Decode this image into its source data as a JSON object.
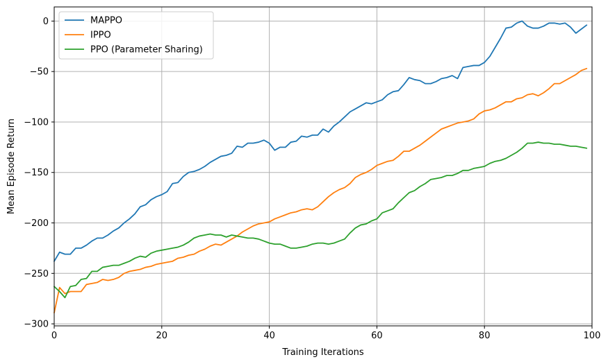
{
  "chart_data": {
    "type": "line",
    "title": "",
    "xlabel": "Training Iterations",
    "ylabel": "Mean Episode Return",
    "xlim": [
      0,
      100
    ],
    "ylim": [
      -302,
      14
    ],
    "xticks": [
      0,
      20,
      40,
      60,
      80,
      100
    ],
    "yticks": [
      0,
      -50,
      -100,
      -150,
      -200,
      -250,
      -300
    ],
    "grid": true,
    "legend_position": "top-left",
    "series": [
      {
        "name": "MAPPO",
        "color": "#1f77b4",
        "values": [
          -238,
          -229,
          -231,
          -231,
          -225,
          -225,
          -222,
          -218,
          -215,
          -215,
          -212,
          -208,
          -205,
          -200,
          -196,
          -191,
          -184,
          -182,
          -177,
          -174,
          -172,
          -169,
          -161,
          -160,
          -154,
          -150,
          -149,
          -147,
          -144,
          -140,
          -137,
          -134,
          -133,
          -131,
          -124,
          -125,
          -121,
          -121,
          -120,
          -118,
          -121,
          -128,
          -125,
          -125,
          -120,
          -119,
          -114,
          -115,
          -113,
          -113,
          -107,
          -110,
          -104,
          -100,
          -95,
          -90,
          -87,
          -84,
          -81,
          -82,
          -80,
          -78,
          -73,
          -70,
          -69,
          -63,
          -56,
          -58,
          -59,
          -62,
          -62,
          -60,
          -57,
          -56,
          -54,
          -57,
          -46,
          -45,
          -44,
          -44,
          -41,
          -35,
          -26,
          -17,
          -7,
          -6,
          -2,
          0,
          -5,
          -7,
          -7,
          -5,
          -2,
          -2,
          -3,
          -2,
          -6,
          -12,
          -8,
          -4
        ]
      },
      {
        "name": "IPPO",
        "color": "#ff7f0e",
        "values": [
          -289,
          -264,
          -270,
          -268,
          -268,
          -268,
          -261,
          -260,
          -259,
          -256,
          -257,
          -256,
          -254,
          -250,
          -248,
          -247,
          -246,
          -244,
          -243,
          -241,
          -240,
          -239,
          -238,
          -235,
          -234,
          -232,
          -231,
          -228,
          -226,
          -223,
          -221,
          -222,
          -219,
          -216,
          -213,
          -209,
          -206,
          -203,
          -201,
          -200,
          -199,
          -196,
          -194,
          -192,
          -190,
          -189,
          -187,
          -186,
          -187,
          -184,
          -179,
          -174,
          -170,
          -167,
          -165,
          -161,
          -155,
          -152,
          -150,
          -147,
          -143,
          -141,
          -139,
          -138,
          -134,
          -129,
          -129,
          -126,
          -123,
          -119,
          -115,
          -111,
          -107,
          -105,
          -103,
          -101,
          -100,
          -99,
          -97,
          -92,
          -89,
          -88,
          -86,
          -83,
          -80,
          -80,
          -77,
          -76,
          -73,
          -72,
          -74,
          -71,
          -67,
          -62,
          -62,
          -59,
          -56,
          -53,
          -49,
          -47
        ]
      },
      {
        "name": "PPO (Parameter Sharing)",
        "color": "#2ca02c",
        "values": [
          -263,
          -268,
          -274,
          -263,
          -262,
          -256,
          -255,
          -248,
          -248,
          -244,
          -243,
          -242,
          -242,
          -240,
          -238,
          -235,
          -233,
          -234,
          -230,
          -228,
          -227,
          -226,
          -225,
          -224,
          -222,
          -219,
          -215,
          -213,
          -212,
          -211,
          -212,
          -212,
          -214,
          -212,
          -213,
          -214,
          -215,
          -215,
          -216,
          -218,
          -220,
          -221,
          -221,
          -223,
          -225,
          -225,
          -224,
          -223,
          -221,
          -220,
          -220,
          -221,
          -220,
          -218,
          -216,
          -210,
          -205,
          -202,
          -201,
          -198,
          -196,
          -190,
          -188,
          -186,
          -180,
          -175,
          -170,
          -168,
          -164,
          -161,
          -157,
          -156,
          -155,
          -153,
          -153,
          -151,
          -148,
          -148,
          -146,
          -145,
          -144,
          -141,
          -139,
          -138,
          -136,
          -133,
          -130,
          -126,
          -121,
          -121,
          -120,
          -121,
          -121,
          -122,
          -122,
          -123,
          -124,
          -124,
          -125,
          -126
        ]
      }
    ]
  }
}
